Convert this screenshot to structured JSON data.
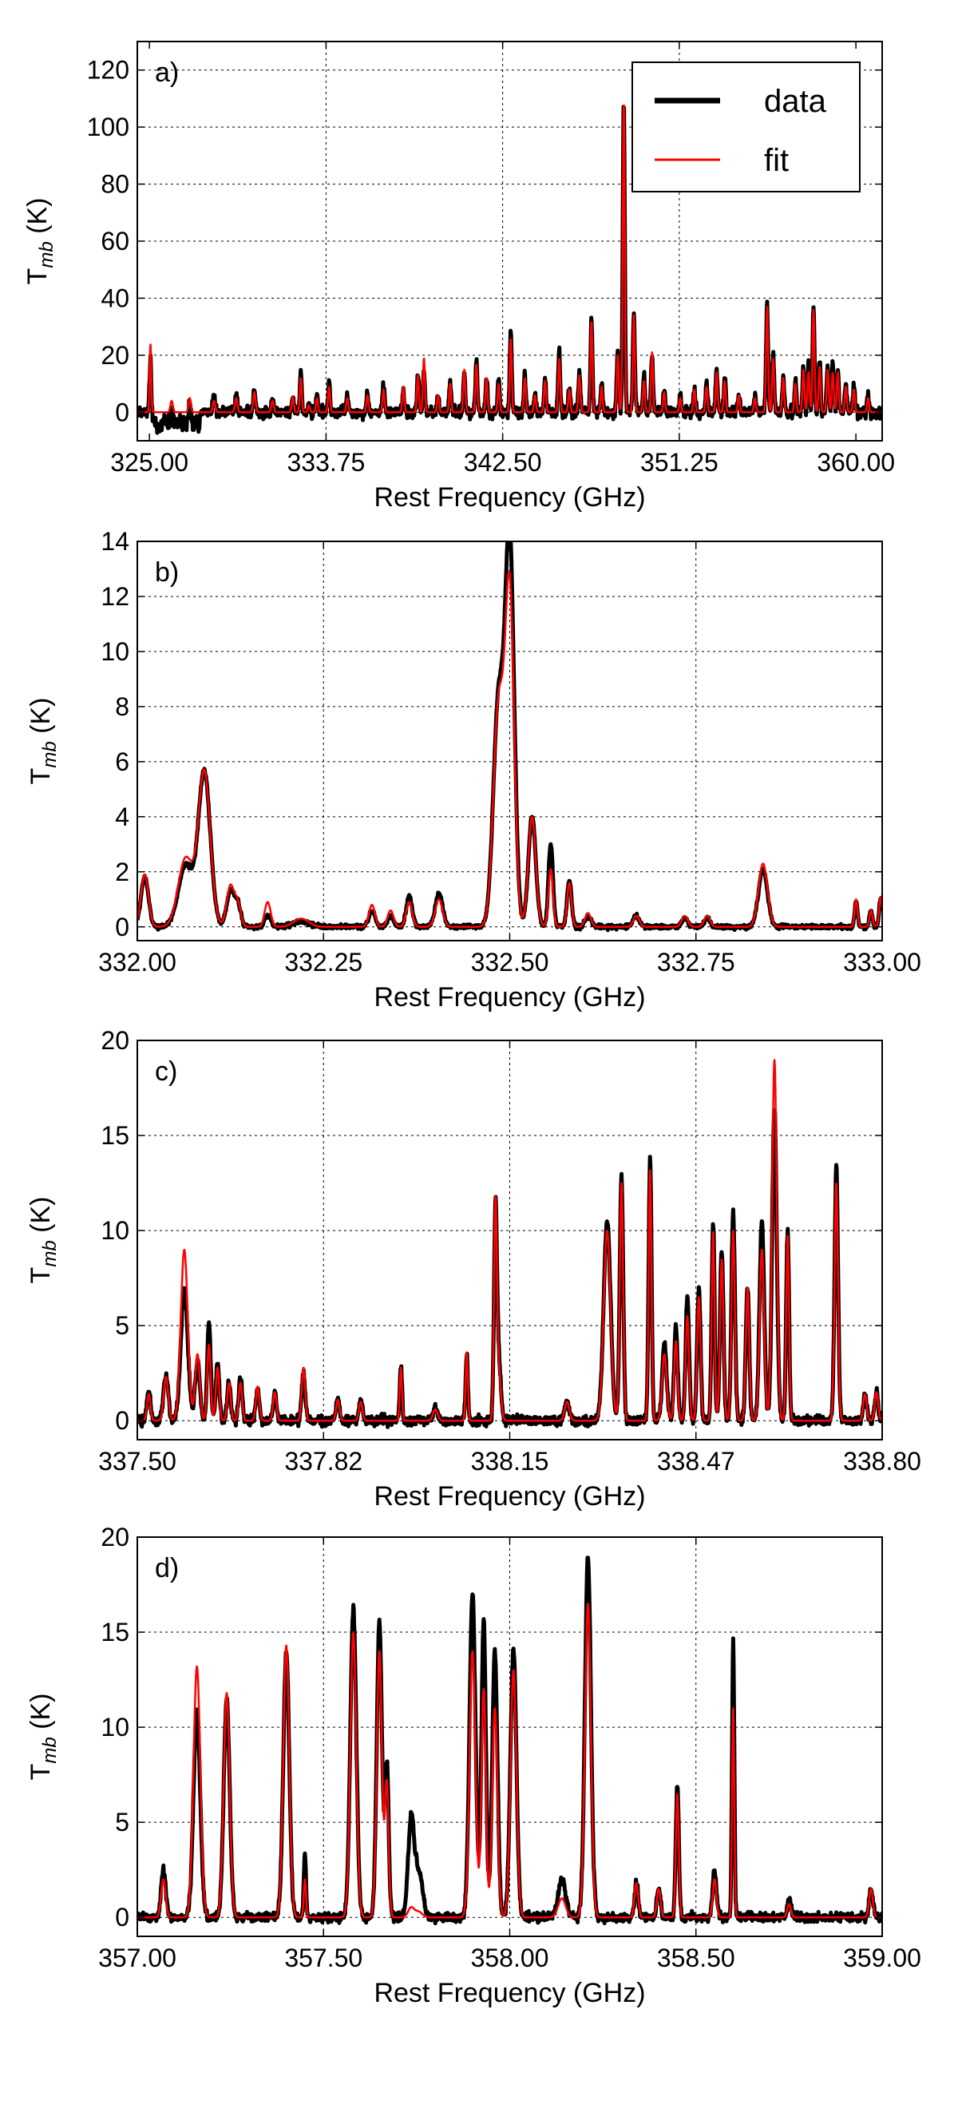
{
  "legend": {
    "items": [
      {
        "label": "data",
        "color": "#000000"
      },
      {
        "label": "fit",
        "color": "#ff0000"
      }
    ],
    "placement": "upper-right"
  },
  "chart_data": [
    {
      "type": "line",
      "panel_label": "a)",
      "xlabel": "Rest Frequency (GHz)",
      "ylabel_main": "T",
      "ylabel_sub": "mb",
      "ylabel_unit": " (K)",
      "xlim": [
        324.4,
        361.3
      ],
      "ylim": [
        -10,
        130
      ],
      "xticks": [
        325.0,
        333.75,
        342.5,
        351.25,
        360.0
      ],
      "xtick_labels": [
        "325.00",
        "333.75",
        "342.50",
        "351.25",
        "360.00"
      ],
      "yticks": [
        0,
        20,
        40,
        60,
        80,
        100,
        120
      ],
      "ytick_labels": [
        "0",
        "20",
        "40",
        "60",
        "80",
        "100",
        "120"
      ],
      "grid": true,
      "noise": 2.0,
      "baseline_dip": {
        "x": [
          325.0,
          327.5
        ],
        "depth": -6
      },
      "lines": [
        [
          325.05,
          24,
          24,
          0.04
        ],
        [
          326.1,
          4,
          4,
          0.06
        ],
        [
          327.0,
          6,
          5,
          0.06
        ],
        [
          328.2,
          5,
          4,
          0.06
        ],
        [
          329.3,
          6,
          5,
          0.06
        ],
        [
          330.2,
          8,
          7,
          0.06
        ],
        [
          331.1,
          5,
          4,
          0.06
        ],
        [
          332.1,
          5.5,
          5.5,
          0.05
        ],
        [
          332.5,
          14,
          12,
          0.05
        ],
        [
          332.9,
          2.5,
          2.5,
          0.05
        ],
        [
          333.3,
          6,
          5,
          0.05
        ],
        [
          333.9,
          10,
          9,
          0.05
        ],
        [
          334.8,
          6,
          5,
          0.05
        ],
        [
          335.8,
          7,
          6,
          0.05
        ],
        [
          336.6,
          9,
          8,
          0.05
        ],
        [
          337.58,
          7,
          9,
          0.05
        ],
        [
          338.3,
          13,
          13,
          0.05
        ],
        [
          338.6,
          14,
          19,
          0.05
        ],
        [
          339.3,
          6,
          6,
          0.05
        ],
        [
          339.9,
          10,
          10,
          0.05
        ],
        [
          340.6,
          14,
          15,
          0.05
        ],
        [
          341.2,
          18,
          17,
          0.05
        ],
        [
          341.7,
          12,
          12,
          0.05
        ],
        [
          342.3,
          11,
          10,
          0.05
        ],
        [
          342.9,
          28,
          26,
          0.05
        ],
        [
          343.6,
          13,
          12,
          0.05
        ],
        [
          344.1,
          6,
          6,
          0.05
        ],
        [
          344.6,
          12,
          11,
          0.05
        ],
        [
          345.3,
          21,
          19,
          0.05
        ],
        [
          345.8,
          9,
          8,
          0.05
        ],
        [
          346.3,
          14,
          13,
          0.05
        ],
        [
          346.9,
          33,
          32,
          0.05
        ],
        [
          347.4,
          10,
          9,
          0.05
        ],
        [
          348.2,
          21,
          20,
          0.05
        ],
        [
          348.5,
          109,
          109,
          0.05
        ],
        [
          349.0,
          35,
          34,
          0.05
        ],
        [
          349.5,
          12,
          11,
          0.05
        ],
        [
          349.9,
          21,
          21,
          0.05
        ],
        [
          350.5,
          8,
          7,
          0.05
        ],
        [
          351.3,
          6,
          5,
          0.05
        ],
        [
          352.0,
          8,
          8,
          0.05
        ],
        [
          352.6,
          10,
          9,
          0.05
        ],
        [
          353.1,
          15,
          14,
          0.05
        ],
        [
          353.5,
          12,
          11,
          0.05
        ],
        [
          354.2,
          6,
          6,
          0.05
        ],
        [
          355.0,
          6,
          5,
          0.05
        ],
        [
          355.6,
          38,
          37,
          0.05
        ],
        [
          355.9,
          20,
          19,
          0.05
        ],
        [
          356.4,
          12,
          12,
          0.05
        ],
        [
          357.0,
          11,
          10,
          0.05
        ],
        [
          357.4,
          16,
          15,
          0.05
        ],
        [
          357.65,
          17,
          14,
          0.05
        ],
        [
          357.9,
          36,
          36,
          0.05
        ],
        [
          358.2,
          18,
          16,
          0.05
        ],
        [
          358.6,
          16,
          15,
          0.05
        ],
        [
          358.85,
          17,
          14,
          0.05
        ],
        [
          359.1,
          15,
          14,
          0.05
        ],
        [
          359.5,
          10,
          9,
          0.05
        ],
        [
          359.9,
          9,
          8,
          0.05
        ],
        [
          360.6,
          6,
          5,
          0.05
        ]
      ]
    },
    {
      "type": "line",
      "panel_label": "b)",
      "xlabel": "Rest Frequency (GHz)",
      "ylabel_main": "T",
      "ylabel_sub": "mb",
      "ylabel_unit": " (K)",
      "xlim": [
        332.0,
        333.0
      ],
      "ylim": [
        -0.5,
        14
      ],
      "xticks": [
        332.0,
        332.25,
        332.5,
        332.75,
        333.0
      ],
      "xtick_labels": [
        "332.00",
        "332.25",
        "332.50",
        "332.75",
        "333.00"
      ],
      "yticks": [
        0,
        2,
        4,
        6,
        8,
        10,
        12,
        14
      ],
      "ytick_labels": [
        "0",
        "2",
        "4",
        "6",
        "8",
        "10",
        "12",
        "14"
      ],
      "grid": true,
      "noise": 0.08,
      "lines": [
        [
          332.01,
          1.8,
          1.9,
          0.005
        ],
        [
          332.09,
          5.6,
          5.6,
          0.008
        ],
        [
          332.065,
          2.2,
          2.5,
          0.01
        ],
        [
          332.125,
          1.3,
          1.5,
          0.005
        ],
        [
          332.135,
          0.8,
          0.8,
          0.004
        ],
        [
          332.175,
          0.4,
          0.9,
          0.004
        ],
        [
          332.22,
          0.2,
          0.3,
          0.01
        ],
        [
          332.315,
          0.6,
          0.8,
          0.004
        ],
        [
          332.34,
          0.4,
          0.6,
          0.004
        ],
        [
          332.365,
          1.1,
          0.9,
          0.004
        ],
        [
          332.405,
          1.2,
          1.0,
          0.005
        ],
        [
          332.485,
          8.2,
          8.0,
          0.007
        ],
        [
          332.5,
          13.8,
          12.0,
          0.006
        ],
        [
          332.53,
          4.0,
          4.0,
          0.005
        ],
        [
          332.555,
          3.0,
          2.1,
          0.003
        ],
        [
          332.58,
          1.7,
          1.6,
          0.003
        ],
        [
          332.605,
          0.4,
          0.5,
          0.004
        ],
        [
          332.67,
          0.4,
          0.4,
          0.004
        ],
        [
          332.735,
          0.3,
          0.4,
          0.004
        ],
        [
          332.765,
          0.3,
          0.4,
          0.004
        ],
        [
          332.84,
          2.1,
          2.3,
          0.006
        ],
        [
          332.965,
          0.9,
          1.0,
          0.002
        ],
        [
          332.985,
          0.6,
          0.6,
          0.002
        ],
        [
          332.998,
          1.0,
          1.1,
          0.002
        ]
      ]
    },
    {
      "type": "line",
      "panel_label": "c)",
      "xlabel": "Rest Frequency (GHz)",
      "ylabel_main": "T",
      "ylabel_sub": "mb",
      "ylabel_unit": " (K)",
      "xlim": [
        337.5,
        338.8
      ],
      "ylim": [
        -1,
        20
      ],
      "xticks": [
        337.5,
        337.825,
        338.15,
        338.475,
        338.8
      ],
      "xtick_labels": [
        "337.50",
        "337.82",
        "338.15",
        "338.47",
        "338.80"
      ],
      "yticks": [
        0,
        5,
        10,
        15,
        20
      ],
      "ytick_labels": [
        "0",
        "5",
        "10",
        "15",
        "20"
      ],
      "grid": true,
      "noise": 0.25,
      "lines": [
        [
          337.52,
          1.6,
          1.4,
          0.003
        ],
        [
          337.55,
          2.5,
          2.3,
          0.004
        ],
        [
          337.582,
          7.0,
          9.0,
          0.006
        ],
        [
          337.605,
          3.2,
          3.5,
          0.004
        ],
        [
          337.625,
          5.2,
          4.0,
          0.003
        ],
        [
          337.64,
          3.0,
          2.8,
          0.003
        ],
        [
          337.66,
          2.0,
          2.0,
          0.003
        ],
        [
          337.68,
          2.2,
          2.0,
          0.003
        ],
        [
          337.71,
          1.6,
          1.8,
          0.003
        ],
        [
          337.74,
          1.4,
          1.5,
          0.003
        ],
        [
          337.79,
          2.5,
          2.8,
          0.003
        ],
        [
          337.85,
          1.1,
          1.1,
          0.003
        ],
        [
          337.89,
          1.1,
          1.0,
          0.003
        ],
        [
          337.96,
          2.9,
          2.8,
          0.002
        ],
        [
          338.02,
          0.7,
          0.6,
          0.004
        ],
        [
          338.075,
          3.5,
          3.6,
          0.002
        ],
        [
          338.125,
          10.0,
          10.4,
          0.0025
        ],
        [
          338.13,
          3.5,
          3.0,
          0.004
        ],
        [
          338.25,
          1.0,
          1.0,
          0.004
        ],
        [
          338.32,
          10.5,
          10.0,
          0.006
        ],
        [
          338.345,
          13.0,
          12.5,
          0.003
        ],
        [
          338.395,
          13.8,
          13.2,
          0.0025
        ],
        [
          338.42,
          4.0,
          3.5,
          0.004
        ],
        [
          338.44,
          5.0,
          4.2,
          0.003
        ],
        [
          338.46,
          6.5,
          5.5,
          0.003
        ],
        [
          338.48,
          7.0,
          6.5,
          0.003
        ],
        [
          338.505,
          10.5,
          10.0,
          0.0025
        ],
        [
          338.52,
          9.0,
          8.5,
          0.003
        ],
        [
          338.54,
          11.0,
          10.0,
          0.003
        ],
        [
          338.565,
          7.0,
          7.0,
          0.003
        ],
        [
          338.59,
          10.5,
          9.0,
          0.004
        ],
        [
          338.612,
          16.5,
          19.0,
          0.004
        ],
        [
          338.635,
          10.0,
          9.8,
          0.0025
        ],
        [
          338.72,
          13.3,
          12.5,
          0.003
        ],
        [
          338.77,
          1.4,
          1.4,
          0.003
        ],
        [
          338.79,
          1.5,
          1.5,
          0.003
        ]
      ]
    },
    {
      "type": "line",
      "panel_label": "d)",
      "xlabel": "Rest Frequency (GHz)",
      "ylabel_main": "T",
      "ylabel_sub": "mb",
      "ylabel_unit": " (K)",
      "xlim": [
        357.0,
        359.0
      ],
      "ylim": [
        -1,
        20
      ],
      "xticks": [
        357.0,
        357.5,
        358.0,
        358.5,
        359.0
      ],
      "xtick_labels": [
        "357.00",
        "357.50",
        "358.00",
        "358.50",
        "359.00"
      ],
      "yticks": [
        0,
        5,
        10,
        15,
        20
      ],
      "ytick_labels": [
        "0",
        "5",
        "10",
        "15",
        "20"
      ],
      "grid": true,
      "noise": 0.25,
      "lines": [
        [
          357.07,
          2.5,
          2.0,
          0.006
        ],
        [
          357.16,
          10.8,
          13.2,
          0.009
        ],
        [
          357.24,
          11.5,
          11.8,
          0.008
        ],
        [
          357.4,
          14.0,
          14.3,
          0.008
        ],
        [
          357.45,
          3.2,
          2.0,
          0.003
        ],
        [
          357.58,
          16.2,
          15.0,
          0.008
        ],
        [
          357.65,
          15.5,
          14.0,
          0.007
        ],
        [
          357.67,
          8.0,
          7.0,
          0.005
        ],
        [
          357.735,
          5.0,
          0.5,
          0.008
        ],
        [
          357.755,
          2.5,
          0.3,
          0.01
        ],
        [
          357.9,
          17.0,
          14.0,
          0.008
        ],
        [
          357.93,
          15.5,
          12.0,
          0.006
        ],
        [
          357.96,
          14.0,
          11.0,
          0.007
        ],
        [
          358.01,
          14.0,
          13.0,
          0.008
        ],
        [
          358.14,
          2.0,
          1.0,
          0.01
        ],
        [
          358.21,
          19.0,
          16.5,
          0.008
        ],
        [
          358.34,
          1.8,
          1.8,
          0.005
        ],
        [
          358.4,
          1.5,
          1.5,
          0.005
        ],
        [
          358.45,
          7.0,
          6.5,
          0.004
        ],
        [
          358.55,
          2.5,
          2.0,
          0.005
        ],
        [
          358.6,
          14.5,
          11.0,
          0.003
        ],
        [
          358.75,
          0.8,
          0.7,
          0.005
        ],
        [
          358.97,
          1.5,
          1.5,
          0.005
        ]
      ]
    }
  ]
}
